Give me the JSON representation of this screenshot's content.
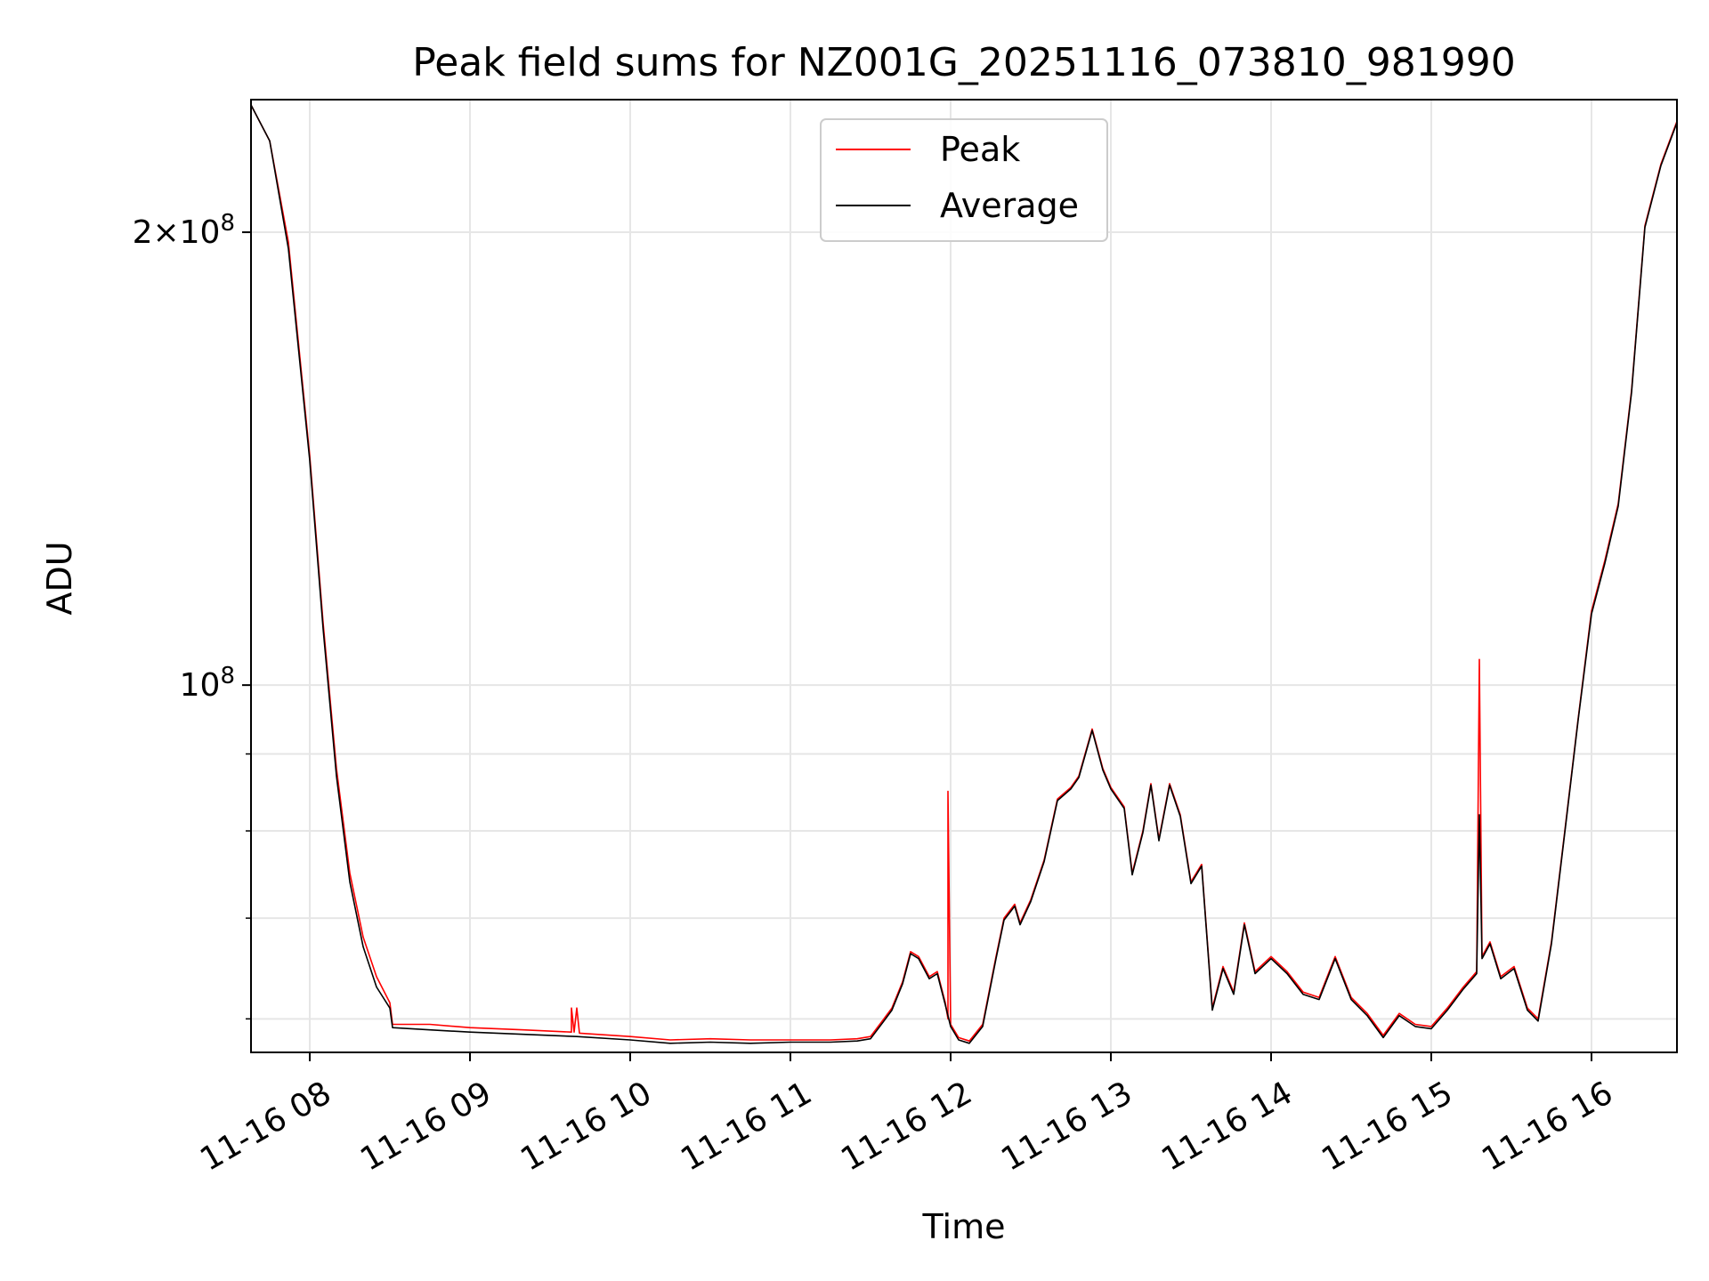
{
  "chart_data": {
    "type": "line",
    "title": "Peak field sums for NZ001G_20251116_073810_981990",
    "xlabel": "Time",
    "ylabel": "ADU",
    "y_scale": "log",
    "xlim": [
      "2025-11-16 07:38",
      "2025-11-16 16:32"
    ],
    "ylim": [
      57000000,
      245000000
    ],
    "grid": true,
    "legend_position": "top-center",
    "x_tick_labels": [
      "11-16 08",
      "11-16 09",
      "11-16 10",
      "11-16 11",
      "11-16 12",
      "11-16 13",
      "11-16 14",
      "11-16 15",
      "11-16 16"
    ],
    "y_tick_labels": [
      {
        "value": 200000000,
        "mantissa": "2",
        "times": "×",
        "base": "10",
        "exp": "8"
      },
      {
        "value": 100000000,
        "mantissa": "",
        "times": "",
        "base": "10",
        "exp": "8"
      }
    ],
    "y_minor_ticks": [
      60000000,
      70000000,
      80000000,
      90000000
    ],
    "series": [
      {
        "name": "Peak",
        "color": "#ff0000",
        "points": [
          [
            "2025-11-16 07:38",
            243000000
          ],
          [
            "2025-11-16 07:45",
            230000000
          ],
          [
            "2025-11-16 07:52",
            197000000
          ],
          [
            "2025-11-16 08:00",
            142000000
          ],
          [
            "2025-11-16 08:05",
            110000000
          ],
          [
            "2025-11-16 08:10",
            88000000
          ],
          [
            "2025-11-16 08:15",
            75000000
          ],
          [
            "2025-11-16 08:20",
            68000000
          ],
          [
            "2025-11-16 08:25",
            64000000
          ],
          [
            "2025-11-16 08:30",
            61500000
          ],
          [
            "2025-11-16 08:31",
            59500000
          ],
          [
            "2025-11-16 08:45",
            59500000
          ],
          [
            "2025-11-16 09:00",
            59200000
          ],
          [
            "2025-11-16 09:20",
            59000000
          ],
          [
            "2025-11-16 09:38",
            58800000
          ],
          [
            "2025-11-16 09:38",
            61000000
          ],
          [
            "2025-11-16 09:39",
            58800000
          ],
          [
            "2025-11-16 09:40",
            61000000
          ],
          [
            "2025-11-16 09:41",
            58700000
          ],
          [
            "2025-11-16 10:00",
            58400000
          ],
          [
            "2025-11-16 10:15",
            58100000
          ],
          [
            "2025-11-16 10:30",
            58200000
          ],
          [
            "2025-11-16 10:45",
            58100000
          ],
          [
            "2025-11-16 11:00",
            58100000
          ],
          [
            "2025-11-16 11:15",
            58100000
          ],
          [
            "2025-11-16 11:25",
            58200000
          ],
          [
            "2025-11-16 11:30",
            58400000
          ],
          [
            "2025-11-16 11:35",
            60000000
          ],
          [
            "2025-11-16 11:38",
            61000000
          ],
          [
            "2025-11-16 11:42",
            63500000
          ],
          [
            "2025-11-16 11:45",
            66500000
          ],
          [
            "2025-11-16 11:48",
            66000000
          ],
          [
            "2025-11-16 11:52",
            64000000
          ],
          [
            "2025-11-16 11:55",
            64500000
          ],
          [
            "2025-11-16 11:58",
            61500000
          ],
          [
            "2025-11-16 11:59",
            60000000
          ],
          [
            "2025-11-16 11:59",
            85000000
          ],
          [
            "2025-11-16 12:00",
            59500000
          ],
          [
            "2025-11-16 12:03",
            58300000
          ],
          [
            "2025-11-16 12:07",
            58000000
          ],
          [
            "2025-11-16 12:12",
            59500000
          ],
          [
            "2025-11-16 12:17",
            66000000
          ],
          [
            "2025-11-16 12:20",
            70000000
          ],
          [
            "2025-11-16 12:24",
            71500000
          ],
          [
            "2025-11-16 12:26",
            69500000
          ],
          [
            "2025-11-16 12:30",
            72000000
          ],
          [
            "2025-11-16 12:35",
            76500000
          ],
          [
            "2025-11-16 12:40",
            84000000
          ],
          [
            "2025-11-16 12:45",
            85500000
          ],
          [
            "2025-11-16 12:48",
            87000000
          ],
          [
            "2025-11-16 12:53",
            93500000
          ],
          [
            "2025-11-16 12:57",
            88000000
          ],
          [
            "2025-11-16 13:00",
            85500000
          ],
          [
            "2025-11-16 13:05",
            83000000
          ],
          [
            "2025-11-16 13:08",
            75000000
          ],
          [
            "2025-11-16 13:12",
            80000000
          ],
          [
            "2025-11-16 13:15",
            86000000
          ],
          [
            "2025-11-16 13:18",
            79000000
          ],
          [
            "2025-11-16 13:22",
            86000000
          ],
          [
            "2025-11-16 13:26",
            82000000
          ],
          [
            "2025-11-16 13:30",
            74000000
          ],
          [
            "2025-11-16 13:34",
            76000000
          ],
          [
            "2025-11-16 13:38",
            61000000
          ],
          [
            "2025-11-16 13:42",
            65000000
          ],
          [
            "2025-11-16 13:46",
            62500000
          ],
          [
            "2025-11-16 13:50",
            69500000
          ],
          [
            "2025-11-16 13:54",
            64500000
          ],
          [
            "2025-11-16 14:00",
            66000000
          ],
          [
            "2025-11-16 14:06",
            64500000
          ],
          [
            "2025-11-16 14:12",
            62500000
          ],
          [
            "2025-11-16 14:18",
            62000000
          ],
          [
            "2025-11-16 14:24",
            66000000
          ],
          [
            "2025-11-16 14:30",
            62000000
          ],
          [
            "2025-11-16 14:36",
            60500000
          ],
          [
            "2025-11-16 14:42",
            58500000
          ],
          [
            "2025-11-16 14:48",
            60500000
          ],
          [
            "2025-11-16 14:54",
            59500000
          ],
          [
            "2025-11-16 15:00",
            59300000
          ],
          [
            "2025-11-16 15:06",
            61000000
          ],
          [
            "2025-11-16 15:12",
            63000000
          ],
          [
            "2025-11-16 15:17",
            64500000
          ],
          [
            "2025-11-16 15:18",
            104000000
          ],
          [
            "2025-11-16 15:19",
            66000000
          ],
          [
            "2025-11-16 15:22",
            67500000
          ],
          [
            "2025-11-16 15:26",
            64000000
          ],
          [
            "2025-11-16 15:31",
            65000000
          ],
          [
            "2025-11-16 15:36",
            61000000
          ],
          [
            "2025-11-16 15:40",
            60000000
          ],
          [
            "2025-11-16 15:45",
            67500000
          ],
          [
            "2025-11-16 15:50",
            80000000
          ],
          [
            "2025-11-16 15:55",
            95000000
          ],
          [
            "2025-11-16 16:00",
            112000000
          ],
          [
            "2025-11-16 16:05",
            121000000
          ],
          [
            "2025-11-16 16:10",
            132000000
          ],
          [
            "2025-11-16 16:15",
            157000000
          ],
          [
            "2025-11-16 16:20",
            202000000
          ],
          [
            "2025-11-16 16:26",
            222000000
          ],
          [
            "2025-11-16 16:32",
            237000000
          ]
        ]
      },
      {
        "name": "Average",
        "color": "#000000",
        "points": [
          [
            "2025-11-16 07:38",
            243000000
          ],
          [
            "2025-11-16 07:45",
            230000000
          ],
          [
            "2025-11-16 07:52",
            195000000
          ],
          [
            "2025-11-16 08:00",
            141000000
          ],
          [
            "2025-11-16 08:05",
            109000000
          ],
          [
            "2025-11-16 08:10",
            87000000
          ],
          [
            "2025-11-16 08:15",
            74000000
          ],
          [
            "2025-11-16 08:20",
            67000000
          ],
          [
            "2025-11-16 08:25",
            63000000
          ],
          [
            "2025-11-16 08:30",
            61000000
          ],
          [
            "2025-11-16 08:31",
            59200000
          ],
          [
            "2025-11-16 08:45",
            59000000
          ],
          [
            "2025-11-16 09:00",
            58800000
          ],
          [
            "2025-11-16 09:20",
            58600000
          ],
          [
            "2025-11-16 09:40",
            58400000
          ],
          [
            "2025-11-16 10:00",
            58100000
          ],
          [
            "2025-11-16 10:15",
            57800000
          ],
          [
            "2025-11-16 10:30",
            57900000
          ],
          [
            "2025-11-16 10:45",
            57800000
          ],
          [
            "2025-11-16 11:00",
            57900000
          ],
          [
            "2025-11-16 11:15",
            57900000
          ],
          [
            "2025-11-16 11:25",
            58000000
          ],
          [
            "2025-11-16 11:30",
            58200000
          ],
          [
            "2025-11-16 11:35",
            59800000
          ],
          [
            "2025-11-16 11:38",
            60800000
          ],
          [
            "2025-11-16 11:42",
            63300000
          ],
          [
            "2025-11-16 11:45",
            66300000
          ],
          [
            "2025-11-16 11:48",
            65800000
          ],
          [
            "2025-11-16 11:52",
            63800000
          ],
          [
            "2025-11-16 11:55",
            64300000
          ],
          [
            "2025-11-16 11:58",
            61300000
          ],
          [
            "2025-11-16 12:00",
            59300000
          ],
          [
            "2025-11-16 12:03",
            58100000
          ],
          [
            "2025-11-16 12:07",
            57800000
          ],
          [
            "2025-11-16 12:12",
            59300000
          ],
          [
            "2025-11-16 12:17",
            65800000
          ],
          [
            "2025-11-16 12:20",
            69800000
          ],
          [
            "2025-11-16 12:24",
            71300000
          ],
          [
            "2025-11-16 12:26",
            69300000
          ],
          [
            "2025-11-16 12:30",
            71800000
          ],
          [
            "2025-11-16 12:35",
            76300000
          ],
          [
            "2025-11-16 12:40",
            83800000
          ],
          [
            "2025-11-16 12:45",
            85300000
          ],
          [
            "2025-11-16 12:48",
            86800000
          ],
          [
            "2025-11-16 12:53",
            93300000
          ],
          [
            "2025-11-16 12:57",
            87800000
          ],
          [
            "2025-11-16 13:00",
            85300000
          ],
          [
            "2025-11-16 13:05",
            82800000
          ],
          [
            "2025-11-16 13:08",
            74800000
          ],
          [
            "2025-11-16 13:12",
            79800000
          ],
          [
            "2025-11-16 13:15",
            85800000
          ],
          [
            "2025-11-16 13:18",
            78800000
          ],
          [
            "2025-11-16 13:22",
            85800000
          ],
          [
            "2025-11-16 13:26",
            81800000
          ],
          [
            "2025-11-16 13:30",
            73800000
          ],
          [
            "2025-11-16 13:34",
            75800000
          ],
          [
            "2025-11-16 13:38",
            60800000
          ],
          [
            "2025-11-16 13:42",
            64800000
          ],
          [
            "2025-11-16 13:46",
            62300000
          ],
          [
            "2025-11-16 13:50",
            69300000
          ],
          [
            "2025-11-16 13:54",
            64300000
          ],
          [
            "2025-11-16 14:00",
            65800000
          ],
          [
            "2025-11-16 14:06",
            64300000
          ],
          [
            "2025-11-16 14:12",
            62300000
          ],
          [
            "2025-11-16 14:18",
            61800000
          ],
          [
            "2025-11-16 14:24",
            65800000
          ],
          [
            "2025-11-16 14:30",
            61800000
          ],
          [
            "2025-11-16 14:36",
            60300000
          ],
          [
            "2025-11-16 14:42",
            58300000
          ],
          [
            "2025-11-16 14:48",
            60300000
          ],
          [
            "2025-11-16 14:54",
            59300000
          ],
          [
            "2025-11-16 15:00",
            59100000
          ],
          [
            "2025-11-16 15:06",
            60800000
          ],
          [
            "2025-11-16 15:12",
            62800000
          ],
          [
            "2025-11-16 15:17",
            64300000
          ],
          [
            "2025-11-16 15:18",
            82000000
          ],
          [
            "2025-11-16 15:19",
            65800000
          ],
          [
            "2025-11-16 15:22",
            67300000
          ],
          [
            "2025-11-16 15:26",
            63800000
          ],
          [
            "2025-11-16 15:31",
            64800000
          ],
          [
            "2025-11-16 15:36",
            60800000
          ],
          [
            "2025-11-16 15:40",
            59800000
          ],
          [
            "2025-11-16 15:45",
            67300000
          ],
          [
            "2025-11-16 15:50",
            79800000
          ],
          [
            "2025-11-16 15:55",
            94800000
          ],
          [
            "2025-11-16 16:00",
            111500000
          ],
          [
            "2025-11-16 16:05",
            120500000
          ],
          [
            "2025-11-16 16:10",
            131500000
          ],
          [
            "2025-11-16 16:15",
            156500000
          ],
          [
            "2025-11-16 16:20",
            201500000
          ],
          [
            "2025-11-16 16:26",
            221500000
          ],
          [
            "2025-11-16 16:32",
            236500000
          ]
        ]
      }
    ]
  }
}
